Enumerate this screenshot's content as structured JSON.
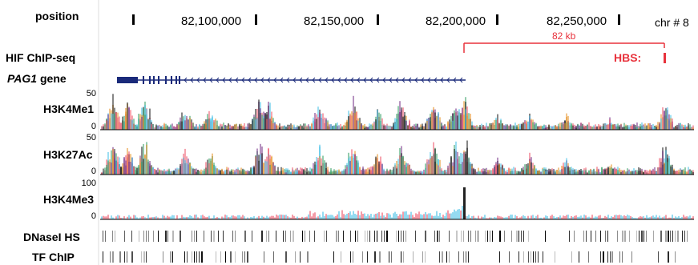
{
  "header": {
    "position_label": "position",
    "coordinates": [
      "82,100,000",
      "82,150,000",
      "82,200,000",
      "82,250,000"
    ],
    "chromosome": "chr # 8"
  },
  "tracks": {
    "hif": {
      "label": "HIF ChIP-seq",
      "distance_label": "82 kb",
      "hbs_label": "HBS:"
    },
    "gene": {
      "name": "PAG1",
      "suffix": " gene"
    },
    "h3k4me1": {
      "label": "H3K4Me1",
      "ymax": "50",
      "ymin": "0"
    },
    "h3k27ac": {
      "label": "H3K27Ac",
      "ymax": "50",
      "ymin": "0"
    },
    "h3k4me3": {
      "label": "H3K4Me3",
      "ymax": "100",
      "ymin": "0"
    },
    "dnase": {
      "label": "DNaseI HS"
    },
    "tfchip": {
      "label": "TF ChIP"
    }
  },
  "colors": {
    "hbs_red": "#e8323c",
    "gene_blue": "#1a2a7a",
    "signal_colors": [
      "#ef5a6e",
      "#4cc3e8",
      "#3ca36a",
      "#7b3a8c",
      "#222222",
      "#e8962e"
    ]
  }
}
